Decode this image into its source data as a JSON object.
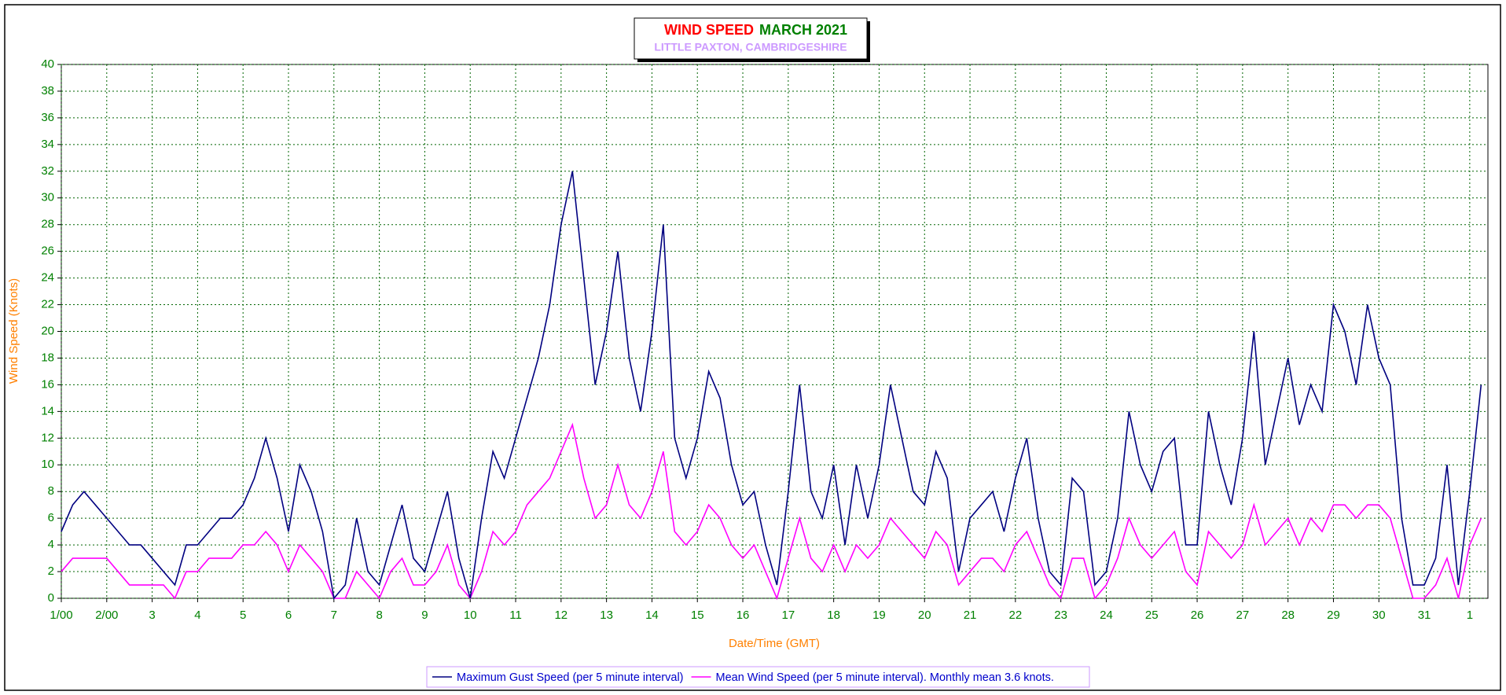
{
  "chart_data": {
    "type": "line",
    "title": "WIND SPEED",
    "title_color": "#ff0000",
    "subtitle": "MARCH 2021",
    "subtitle_color": "#008000",
    "location": "LITTLE PAXTON, CAMBRIDGESHIRE",
    "location_color": "#cc99ff",
    "x_label": "Date/Time (GMT)",
    "y_label": "Wind Speed (Knots)",
    "x": [
      0,
      0.25,
      0.5,
      0.75,
      1,
      1.25,
      1.5,
      1.75,
      2,
      2.25,
      2.5,
      2.75,
      3,
      3.25,
      3.5,
      3.75,
      4,
      4.25,
      4.5,
      4.75,
      5,
      5.25,
      5.5,
      5.75,
      6,
      6.25,
      6.5,
      6.75,
      7,
      7.25,
      7.5,
      7.75,
      8,
      8.25,
      8.5,
      8.75,
      9,
      9.25,
      9.5,
      9.75,
      10,
      10.25,
      10.5,
      10.75,
      11,
      11.25,
      11.5,
      11.75,
      12,
      12.25,
      12.5,
      12.75,
      13,
      13.25,
      13.5,
      13.75,
      14,
      14.25,
      14.5,
      14.75,
      15,
      15.25,
      15.5,
      15.75,
      16,
      16.25,
      16.5,
      16.75,
      17,
      17.25,
      17.5,
      17.75,
      18,
      18.25,
      18.5,
      18.75,
      19,
      19.25,
      19.5,
      19.75,
      20,
      20.25,
      20.5,
      20.75,
      21,
      21.25,
      21.5,
      21.75,
      22,
      22.25,
      22.5,
      22.75,
      23,
      23.25,
      23.5,
      23.75,
      24,
      24.25,
      24.5,
      24.75,
      25,
      25.25,
      25.5,
      25.75,
      26,
      26.25,
      26.5,
      26.75,
      27,
      27.25,
      27.5,
      27.75,
      28,
      28.25,
      28.5,
      28.75,
      29,
      29.25,
      29.5,
      29.75,
      30,
      30.25,
      30.5,
      30.75,
      31,
      31.25
    ],
    "series": [
      {
        "name": "Maximum Gust Speed (per 5 minute interval)",
        "color": "#000080",
        "values": [
          5,
          7,
          8,
          7,
          6,
          5,
          4,
          4,
          3,
          2,
          1,
          4,
          4,
          5,
          6,
          6,
          7,
          9,
          12,
          9,
          5,
          10,
          8,
          5,
          0,
          1,
          6,
          2,
          1,
          4,
          7,
          3,
          2,
          5,
          8,
          3,
          0,
          6,
          11,
          9,
          12,
          15,
          18,
          22,
          28,
          32,
          24,
          16,
          20,
          26,
          18,
          14,
          20,
          28,
          12,
          9,
          12,
          17,
          15,
          10,
          7,
          8,
          4,
          1,
          8,
          16,
          8,
          6,
          10,
          4,
          10,
          6,
          10,
          16,
          12,
          8,
          7,
          11,
          9,
          2,
          6,
          7,
          8,
          5,
          9,
          12,
          6,
          2,
          1,
          9,
          8,
          1,
          2,
          6,
          14,
          10,
          8,
          11,
          12,
          4,
          4,
          14,
          10,
          7,
          12,
          20,
          10,
          14,
          18,
          13,
          16,
          14,
          22,
          20,
          16,
          22,
          18,
          16,
          6,
          1,
          1,
          3,
          10,
          1,
          8,
          16
        ]
      },
      {
        "name": "Mean Wind Speed (per 5 minute interval). Monthly mean 3.6 knots.",
        "color": "#ff00ff",
        "values": [
          2,
          3,
          3,
          3,
          3,
          2,
          1,
          1,
          1,
          1,
          0,
          2,
          2,
          3,
          3,
          3,
          4,
          4,
          5,
          4,
          2,
          4,
          3,
          2,
          0,
          0,
          2,
          1,
          0,
          2,
          3,
          1,
          1,
          2,
          4,
          1,
          0,
          2,
          5,
          4,
          5,
          7,
          8,
          9,
          11,
          13,
          9,
          6,
          7,
          10,
          7,
          6,
          8,
          11,
          5,
          4,
          5,
          7,
          6,
          4,
          3,
          4,
          2,
          0,
          3,
          6,
          3,
          2,
          4,
          2,
          4,
          3,
          4,
          6,
          5,
          4,
          3,
          5,
          4,
          1,
          2,
          3,
          3,
          2,
          4,
          5,
          3,
          1,
          0,
          3,
          3,
          0,
          1,
          3,
          6,
          4,
          3,
          4,
          5,
          2,
          1,
          5,
          4,
          3,
          4,
          7,
          4,
          5,
          6,
          4,
          6,
          5,
          7,
          7,
          6,
          7,
          7,
          6,
          3,
          0,
          0,
          1,
          3,
          0,
          4,
          6
        ]
      }
    ],
    "xlim": [
      0,
      31.4
    ],
    "xticks": [
      {
        "value": 0,
        "label": "1/00"
      },
      {
        "value": 1,
        "label": "2/00"
      },
      {
        "value": 2,
        "label": "3"
      },
      {
        "value": 3,
        "label": "4"
      },
      {
        "value": 4,
        "label": "5"
      },
      {
        "value": 5,
        "label": "6"
      },
      {
        "value": 6,
        "label": "7"
      },
      {
        "value": 7,
        "label": "8"
      },
      {
        "value": 8,
        "label": "9"
      },
      {
        "value": 9,
        "label": "10"
      },
      {
        "value": 10,
        "label": "11"
      },
      {
        "value": 11,
        "label": "12"
      },
      {
        "value": 12,
        "label": "13"
      },
      {
        "value": 13,
        "label": "14"
      },
      {
        "value": 14,
        "label": "15"
      },
      {
        "value": 15,
        "label": "16"
      },
      {
        "value": 16,
        "label": "17"
      },
      {
        "value": 17,
        "label": "18"
      },
      {
        "value": 18,
        "label": "19"
      },
      {
        "value": 19,
        "label": "20"
      },
      {
        "value": 20,
        "label": "21"
      },
      {
        "value": 21,
        "label": "22"
      },
      {
        "value": 22,
        "label": "23"
      },
      {
        "value": 23,
        "label": "24"
      },
      {
        "value": 24,
        "label": "25"
      },
      {
        "value": 25,
        "label": "26"
      },
      {
        "value": 26,
        "label": "27"
      },
      {
        "value": 27,
        "label": "28"
      },
      {
        "value": 28,
        "label": "29"
      },
      {
        "value": 29,
        "label": "30"
      },
      {
        "value": 30,
        "label": "31"
      },
      {
        "value": 31,
        "label": "1"
      }
    ],
    "ylim": [
      0,
      40
    ],
    "yticks": [
      0,
      2,
      4,
      6,
      8,
      10,
      12,
      14,
      16,
      18,
      20,
      22,
      24,
      26,
      28,
      30,
      32,
      34,
      36,
      38,
      40
    ],
    "grid": true,
    "legend": "bottom"
  }
}
